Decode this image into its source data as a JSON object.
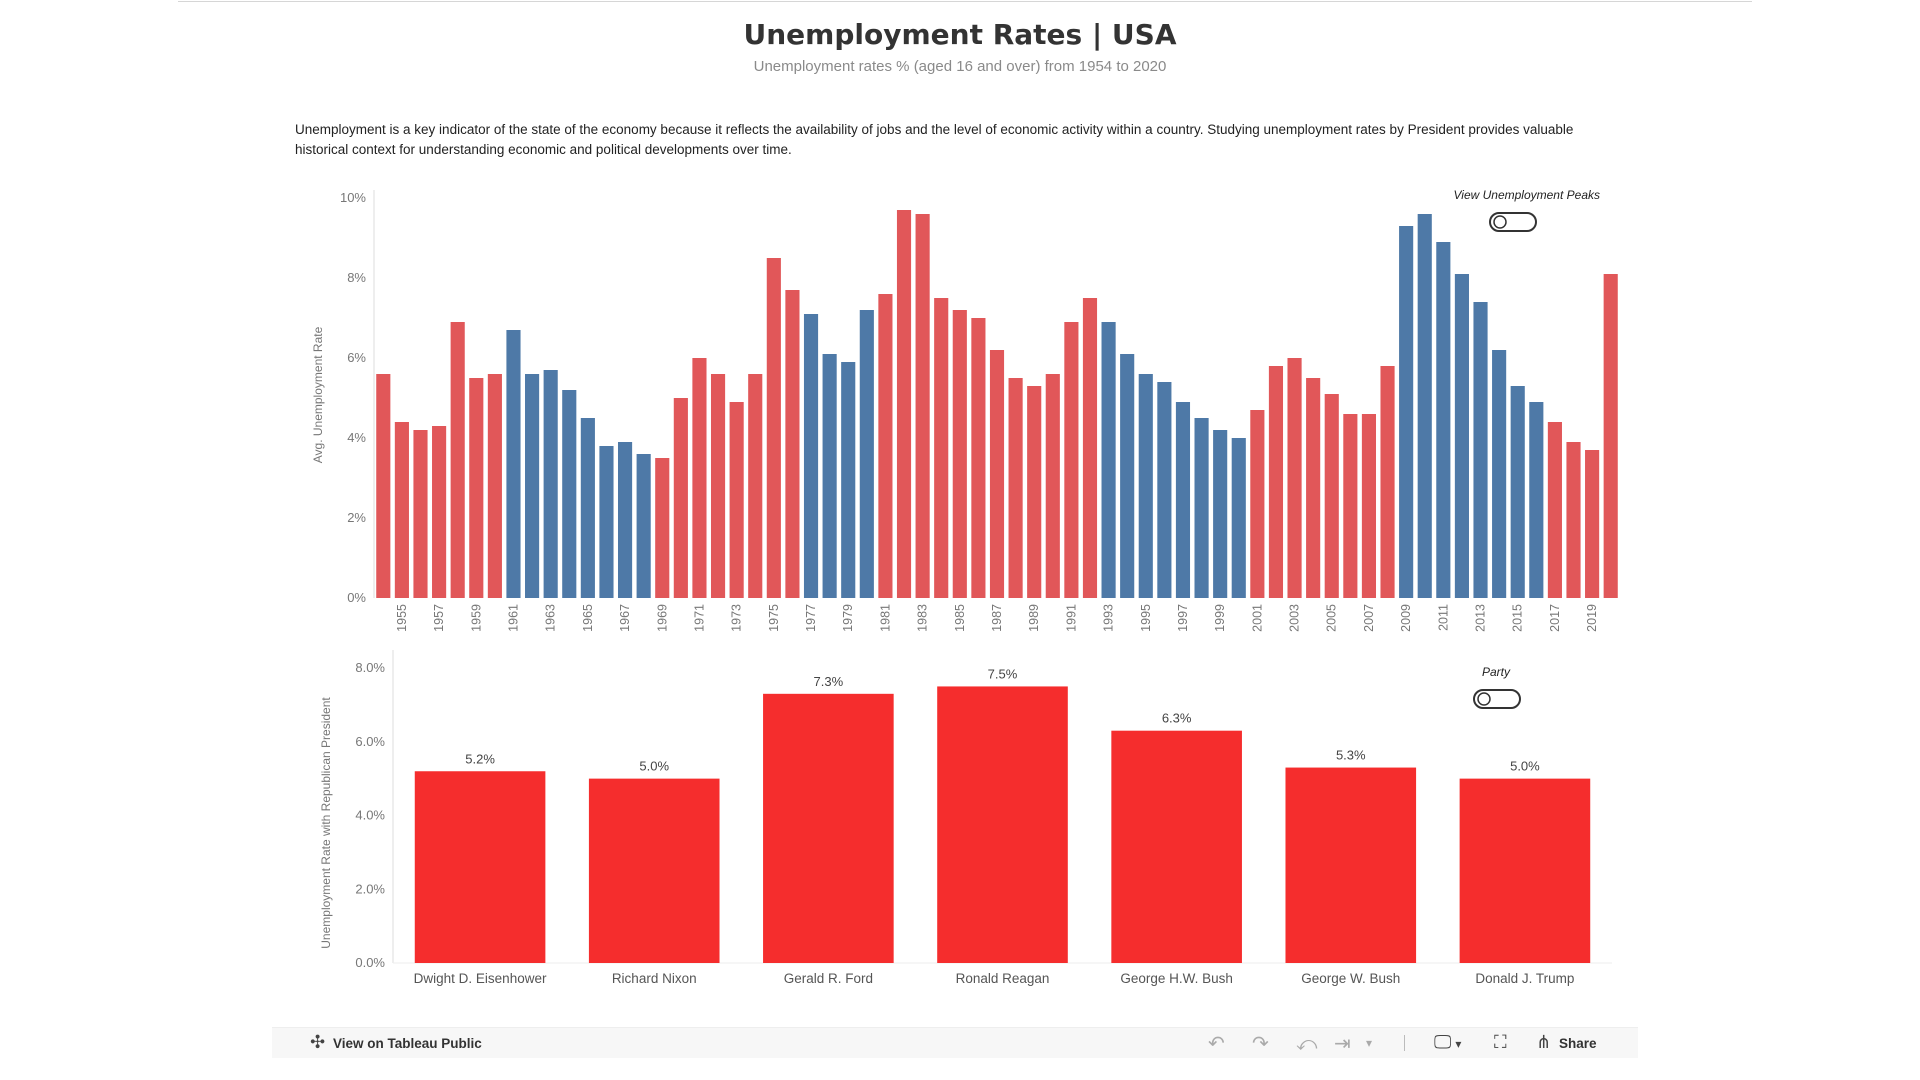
{
  "header": {
    "title": "Unemployment Rates | USA",
    "subtitle": "Unemployment rates % (aged 16 and over) from 1954 to 2020",
    "intro": "Unemployment is a key indicator of the state of the economy because it reflects the availability of jobs and the level of economic activity within a country. Studying unemployment rates by President provides valuable historical context for understanding economic and political developments over time."
  },
  "colors": {
    "republican_bar": "#e15759",
    "democrat_bar": "#4e79a7",
    "bottom_bar": "#f52d2d",
    "toggle_border": "#333333"
  },
  "toggles": {
    "peaks_label": "View Unemployment  Peaks",
    "party_label": "Party"
  },
  "chart_data": [
    {
      "type": "bar",
      "title": "",
      "ylabel": "Avg. Unemployment Rate",
      "ylim": [
        0,
        10
      ],
      "y_ticks": [
        "0%",
        "2%",
        "4%",
        "6%",
        "8%",
        "10%"
      ],
      "x_tick_labels": [
        "1955",
        "1957",
        "1959",
        "1961",
        "1963",
        "1965",
        "1967",
        "1969",
        "1971",
        "1973",
        "1975",
        "1977",
        "1979",
        "1981",
        "1983",
        "1985",
        "1987",
        "1989",
        "1991",
        "1993",
        "1995",
        "1997",
        "1999",
        "2001",
        "2003",
        "2005",
        "2007",
        "2009",
        "2011",
        "2013",
        "2015",
        "2017",
        "2019"
      ],
      "categories": [
        1954,
        1955,
        1956,
        1957,
        1958,
        1959,
        1960,
        1961,
        1962,
        1963,
        1964,
        1965,
        1966,
        1967,
        1968,
        1969,
        1970,
        1971,
        1972,
        1973,
        1974,
        1975,
        1976,
        1977,
        1978,
        1979,
        1980,
        1981,
        1982,
        1983,
        1984,
        1985,
        1986,
        1987,
        1988,
        1989,
        1990,
        1991,
        1992,
        1993,
        1994,
        1995,
        1996,
        1997,
        1998,
        1999,
        2000,
        2001,
        2002,
        2003,
        2004,
        2005,
        2006,
        2007,
        2008,
        2009,
        2010,
        2011,
        2012,
        2013,
        2014,
        2015,
        2016,
        2017,
        2018,
        2019,
        2020
      ],
      "values": [
        5.6,
        4.4,
        4.2,
        4.3,
        6.9,
        5.5,
        5.6,
        6.7,
        5.6,
        5.7,
        5.2,
        4.5,
        3.8,
        3.9,
        3.6,
        3.5,
        5.0,
        6.0,
        5.6,
        4.9,
        5.6,
        8.5,
        7.7,
        7.1,
        6.1,
        5.9,
        7.2,
        7.6,
        9.7,
        9.6,
        7.5,
        7.2,
        7.0,
        6.2,
        5.5,
        5.3,
        5.6,
        6.9,
        7.5,
        6.9,
        6.1,
        5.6,
        5.4,
        4.9,
        4.5,
        4.2,
        4.0,
        4.7,
        5.8,
        6.0,
        5.5,
        5.1,
        4.6,
        4.6,
        5.8,
        9.3,
        9.6,
        8.9,
        8.1,
        7.4,
        6.2,
        5.3,
        4.9,
        4.4,
        3.9,
        3.7,
        8.1
      ],
      "party": [
        "R",
        "R",
        "R",
        "R",
        "R",
        "R",
        "R",
        "D",
        "D",
        "D",
        "D",
        "D",
        "D",
        "D",
        "D",
        "R",
        "R",
        "R",
        "R",
        "R",
        "R",
        "R",
        "R",
        "D",
        "D",
        "D",
        "D",
        "R",
        "R",
        "R",
        "R",
        "R",
        "R",
        "R",
        "R",
        "R",
        "R",
        "R",
        "R",
        "D",
        "D",
        "D",
        "D",
        "D",
        "D",
        "D",
        "D",
        "R",
        "R",
        "R",
        "R",
        "R",
        "R",
        "R",
        "R",
        "D",
        "D",
        "D",
        "D",
        "D",
        "D",
        "D",
        "D",
        "R",
        "R",
        "R",
        "R"
      ],
      "legend": "none"
    },
    {
      "type": "bar",
      "title": "",
      "ylabel": "Unemployment Rate with Republican President",
      "ylim": [
        0,
        8
      ],
      "y_ticks": [
        "0.0%",
        "2.0%",
        "4.0%",
        "6.0%",
        "8.0%"
      ],
      "categories": [
        "Dwight D. Eisenhower",
        "Richard Nixon",
        "Gerald R. Ford",
        "Ronald Reagan",
        "George H.W. Bush",
        "George W. Bush",
        "Donald J. Trump"
      ],
      "values": [
        5.2,
        5.0,
        7.3,
        7.5,
        6.3,
        5.3,
        5.0
      ],
      "data_labels": [
        "5.2%",
        "5.0%",
        "7.3%",
        "7.5%",
        "6.3%",
        "5.3%",
        "5.0%"
      ]
    }
  ],
  "toolbar": {
    "view_on_label": "View on Tableau Public",
    "share_label": "Share",
    "undo_icon": "undo-icon",
    "redo_icon": "redo-icon",
    "revert_icon": "revert-icon",
    "refresh_icon": "refresh-icon",
    "device_icon": "device-preview-icon",
    "fullscreen_icon": "fullscreen-icon",
    "share_icon": "share-icon"
  }
}
